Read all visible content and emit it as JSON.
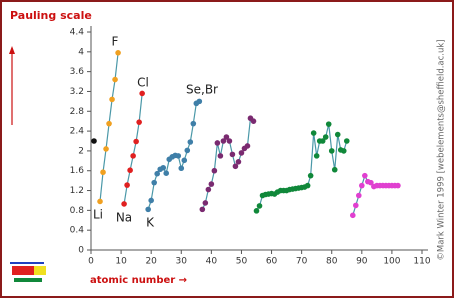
{
  "chart_data": {
    "type": "scatter",
    "title": "Pauling scale",
    "x_label": "atomic number →",
    "credit": "©Mark Winter 1999 [webelements@sheffield.ac.uk]",
    "annotations": [
      "Li",
      "F",
      "Na",
      "Cl",
      "K",
      "Se,Br"
    ],
    "line_color": "#4a98a8",
    "series": [
      {
        "color": "#111111",
        "x": [
          1
        ],
        "values": [
          2.2
        ]
      },
      {
        "color": "#f0a020",
        "x": [
          3,
          4,
          5,
          6,
          7,
          8,
          9
        ],
        "values": [
          0.98,
          1.57,
          2.04,
          2.55,
          3.04,
          3.44,
          3.98
        ]
      },
      {
        "color": "#e02020",
        "x": [
          11,
          12,
          13,
          14,
          15,
          16,
          17
        ],
        "values": [
          0.93,
          1.31,
          1.61,
          1.9,
          2.19,
          2.58,
          3.16
        ]
      },
      {
        "color": "#3f7fa8",
        "x": [
          19,
          20,
          21,
          22,
          23,
          24,
          25,
          26,
          27,
          28,
          29,
          30,
          31,
          32,
          33,
          34,
          35,
          36
        ],
        "values": [
          0.82,
          1.0,
          1.36,
          1.54,
          1.63,
          1.66,
          1.55,
          1.83,
          1.88,
          1.91,
          1.9,
          1.65,
          1.81,
          2.01,
          2.18,
          2.55,
          2.96,
          3.0
        ]
      },
      {
        "color": "#7a2a70",
        "x": [
          37,
          38,
          39,
          40,
          41,
          42,
          43,
          44,
          45,
          46,
          47,
          48,
          49,
          50,
          51,
          52,
          53,
          54
        ],
        "values": [
          0.82,
          0.95,
          1.22,
          1.33,
          1.6,
          2.16,
          1.9,
          2.2,
          2.28,
          2.2,
          1.93,
          1.69,
          1.78,
          1.96,
          2.05,
          2.1,
          2.66,
          2.6
        ]
      },
      {
        "color": "#10883a",
        "x": [
          55,
          56,
          57,
          58,
          59,
          60,
          61,
          62,
          63,
          64,
          65,
          66,
          67,
          68,
          69,
          70,
          71,
          72,
          73,
          74,
          75,
          76,
          77,
          78,
          79,
          80,
          81,
          82,
          83,
          84,
          85
        ],
        "values": [
          0.79,
          0.89,
          1.1,
          1.12,
          1.13,
          1.14,
          1.13,
          1.17,
          1.2,
          1.2,
          1.2,
          1.22,
          1.23,
          1.24,
          1.25,
          1.26,
          1.27,
          1.3,
          1.5,
          2.36,
          1.9,
          2.2,
          2.2,
          2.28,
          2.54,
          2.0,
          1.62,
          2.33,
          2.02,
          2.0,
          2.2
        ]
      },
      {
        "color": "#e040d0",
        "x": [
          87,
          88,
          89,
          90,
          91,
          92,
          93,
          94,
          95,
          96,
          97,
          98,
          99,
          100,
          101,
          102
        ],
        "values": [
          0.7,
          0.9,
          1.1,
          1.3,
          1.5,
          1.38,
          1.36,
          1.28,
          1.3,
          1.3,
          1.3,
          1.3,
          1.3,
          1.3,
          1.3,
          1.3
        ]
      }
    ],
    "xlim": [
      0,
      110
    ],
    "xticks": [
      0,
      10,
      20,
      30,
      40,
      50,
      60,
      70,
      80,
      90,
      100,
      110
    ],
    "ylim": [
      0,
      4.4
    ],
    "yticks": [
      0,
      0.4,
      0.8,
      1.2,
      1.6,
      2,
      2.4,
      2.8,
      3.2,
      3.6,
      4,
      4.4
    ]
  }
}
